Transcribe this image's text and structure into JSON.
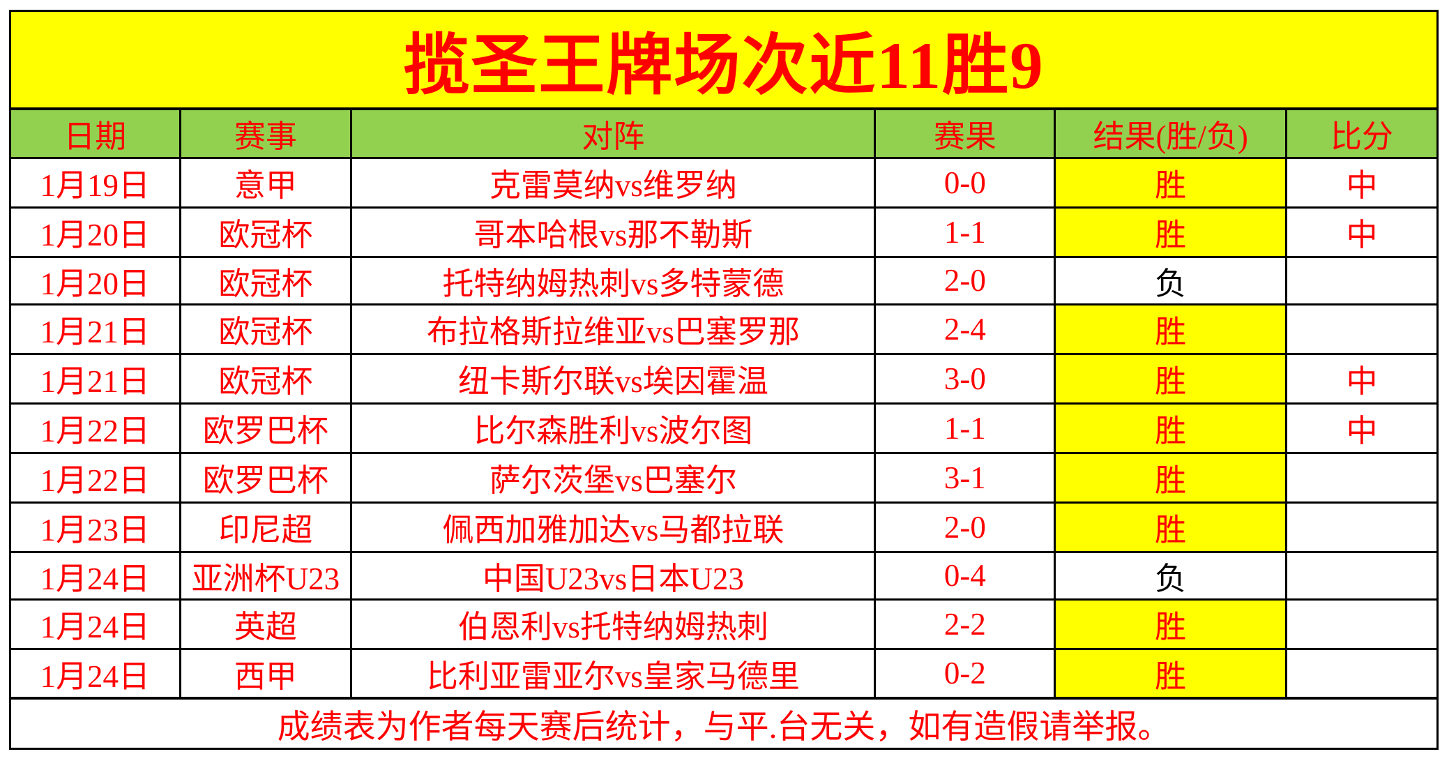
{
  "title": "揽圣王牌场次近11胜9",
  "columns": [
    "日期",
    "赛事",
    "对阵",
    "赛果",
    "结果(胜/负)",
    "比分"
  ],
  "rows": [
    {
      "date": "1月19日",
      "league": "意甲",
      "match": "克雷莫纳vs维罗纳",
      "score": "0-0",
      "result": "胜",
      "mark": "中"
    },
    {
      "date": "1月20日",
      "league": "欧冠杯",
      "match": "哥本哈根vs那不勒斯",
      "score": "1-1",
      "result": "胜",
      "mark": "中"
    },
    {
      "date": "1月20日",
      "league": "欧冠杯",
      "match": "托特纳姆热刺vs多特蒙德",
      "score": "2-0",
      "result": "负",
      "mark": ""
    },
    {
      "date": "1月21日",
      "league": "欧冠杯",
      "match": "布拉格斯拉维亚vs巴塞罗那",
      "score": "2-4",
      "result": "胜",
      "mark": ""
    },
    {
      "date": "1月21日",
      "league": "欧冠杯",
      "match": "纽卡斯尔联vs埃因霍温",
      "score": "3-0",
      "result": "胜",
      "mark": "中"
    },
    {
      "date": "1月22日",
      "league": "欧罗巴杯",
      "match": "比尔森胜利vs波尔图",
      "score": "1-1",
      "result": "胜",
      "mark": "中"
    },
    {
      "date": "1月22日",
      "league": "欧罗巴杯",
      "match": "萨尔茨堡vs巴塞尔",
      "score": "3-1",
      "result": "胜",
      "mark": ""
    },
    {
      "date": "1月23日",
      "league": "印尼超",
      "match": "佩西加雅加达vs马都拉联",
      "score": "2-0",
      "result": "胜",
      "mark": ""
    },
    {
      "date": "1月24日",
      "league": "亚洲杯U23",
      "match": "中国U23vs日本U23",
      "score": "0-4",
      "result": "负",
      "mark": ""
    },
    {
      "date": "1月24日",
      "league": "英超",
      "match": "伯恩利vs托特纳姆热刺",
      "score": "2-2",
      "result": "胜",
      "mark": ""
    },
    {
      "date": "1月24日",
      "league": "西甲",
      "match": "比利亚雷亚尔vs皇家马德里",
      "score": "0-2",
      "result": "胜",
      "mark": ""
    }
  ],
  "labels": {
    "win": "胜",
    "loss": "负"
  },
  "footer": "成绩表为作者每天赛后统计，与平.台无关，如有造假请举报。",
  "colors": {
    "banner_bg": "#FFFF00",
    "header_bg": "#92D050",
    "win_bg": "#FFFF00",
    "text_red": "#FF0000",
    "loss_text": "#000000",
    "border_color": "#000000",
    "page_bg": "#FFFFFF"
  }
}
